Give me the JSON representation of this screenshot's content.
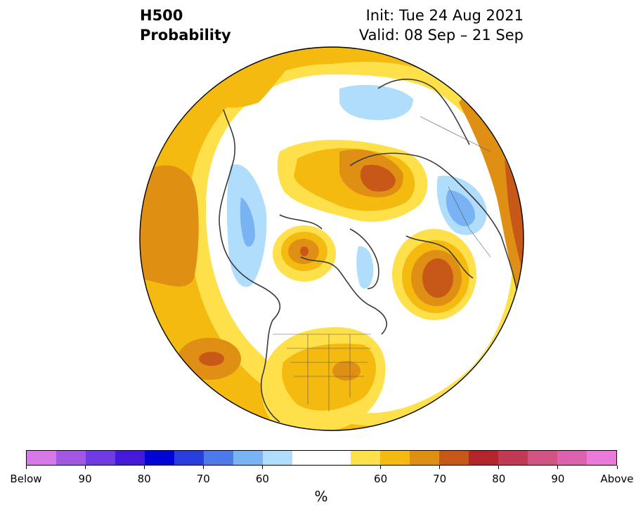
{
  "header": {
    "field": "H500",
    "product": "Probability",
    "init": "Init: Tue 24 Aug 2021",
    "valid": "Valid: 08 Sep – 21 Sep"
  },
  "colorbar": {
    "unit": "%",
    "colors": [
      "#d778e9",
      "#a257e3",
      "#6f3be3",
      "#4519d9",
      "#0005d6",
      "#2a3edf",
      "#4f78ea",
      "#79b3f4",
      "#b0ddfb",
      "#ffffff",
      "#ffffff",
      "#fee04a",
      "#f4ba0f",
      "#df8f13",
      "#c85818",
      "#b3252a",
      "#c13a55",
      "#d45385",
      "#dc62af",
      "#ea7ad9"
    ],
    "tick_labels": [
      "Below",
      "90",
      "80",
      "70",
      "60",
      "60",
      "70",
      "80",
      "90",
      "Above"
    ]
  },
  "legend_palette": {
    "near_normal": "#ffffff",
    "coast": "#3a3a3a",
    "border": "#333333"
  }
}
